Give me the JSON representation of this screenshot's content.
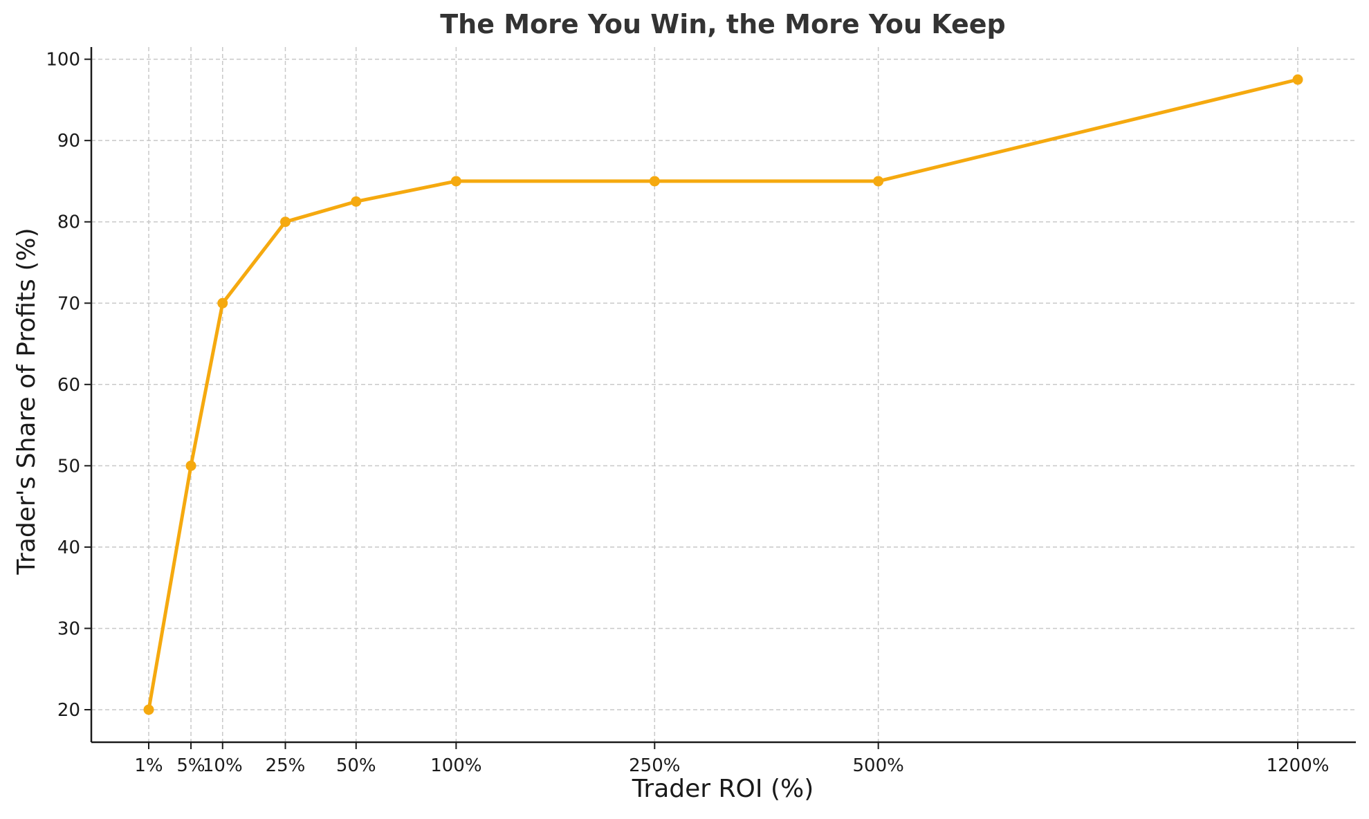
{
  "chart_data": {
    "type": "line",
    "title": "The More You Win, the More You Keep",
    "xlabel": "Trader ROI (%)",
    "ylabel": "Trader's Share of Profits (%)",
    "x": [
      1,
      5,
      10,
      25,
      50,
      100,
      250,
      500,
      1200
    ],
    "x_tick_labels": [
      "1%",
      "5%",
      "10%",
      "25%",
      "50%",
      "100%",
      "250%",
      "500%",
      "1200%"
    ],
    "x_scale": "sqrt",
    "series": [
      {
        "values": [
          20,
          50,
          70,
          80,
          82.5,
          85,
          85,
          85,
          97.5
        ],
        "color": "#F5A90F"
      }
    ],
    "ylim": [
      16,
      101.5
    ],
    "y_ticks": [
      20,
      30,
      40,
      50,
      60,
      70,
      80,
      90,
      100
    ],
    "grid": true,
    "legend": "none"
  }
}
